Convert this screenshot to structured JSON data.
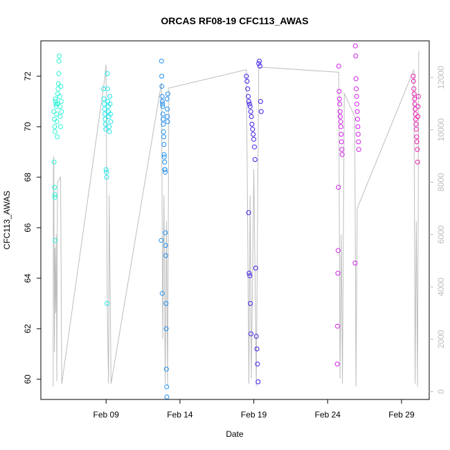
{
  "chart_data": {
    "type": "scatter",
    "title": "ORCAS RF08-19 CFC113_AWAS",
    "xlabel": "Date",
    "ylabel": "CFC113_AWAS",
    "x_ticks": [
      {
        "date": "2016-02-09",
        "label": "Feb 09"
      },
      {
        "date": "2016-02-14",
        "label": "Feb 14"
      },
      {
        "date": "2016-02-19",
        "label": "Feb 19"
      },
      {
        "date": "2016-02-24",
        "label": "Feb 24"
      },
      {
        "date": "2016-02-29",
        "label": "Feb 29"
      }
    ],
    "xlim": [
      "2016-02-04T14:00",
      "2016-03-01T21:00"
    ],
    "ylim": [
      59.2,
      73.4
    ],
    "y_ticks": [
      60,
      62,
      64,
      66,
      68,
      70,
      72
    ],
    "y2_ticks": [
      0,
      2000,
      4000,
      6000,
      8000,
      10000,
      12000
    ],
    "y2lim": [
      -300,
      13400
    ],
    "y2_color": "#bdbdbd",
    "grid": false,
    "legend": "none",
    "point_style": "open circles",
    "series": [
      {
        "color": "#2af5d6",
        "points": [
          {
            "x": "2016-02-05T11:00",
            "y": 70.6
          },
          {
            "x": "2016-02-05T12:00",
            "y": 70.3
          },
          {
            "x": "2016-02-05T12:30",
            "y": 70.0
          },
          {
            "x": "2016-02-05T13:00",
            "y": 69.8
          },
          {
            "x": "2016-02-05T13:30",
            "y": 71.1
          },
          {
            "x": "2016-02-05T14:00",
            "y": 71.0
          },
          {
            "x": "2016-02-05T14:30",
            "y": 70.9
          },
          {
            "x": "2016-02-05T15:00",
            "y": 70.8
          },
          {
            "x": "2016-02-05T15:30",
            "y": 70.5
          },
          {
            "x": "2016-02-05T16:00",
            "y": 70.2
          },
          {
            "x": "2016-02-05T11:30",
            "y": 68.6
          },
          {
            "x": "2016-02-05T12:15",
            "y": 67.6
          },
          {
            "x": "2016-02-05T12:40",
            "y": 67.3
          },
          {
            "x": "2016-02-05T12:50",
            "y": 67.2
          },
          {
            "x": "2016-02-05T13:10",
            "y": 65.5
          },
          {
            "x": "2016-02-05T16:30",
            "y": 69.6
          },
          {
            "x": "2016-02-05T17:00",
            "y": 70.9
          },
          {
            "x": "2016-02-05T17:30",
            "y": 71.3
          },
          {
            "x": "2016-02-05T18:00",
            "y": 71.5
          },
          {
            "x": "2016-02-05T18:30",
            "y": 71.7
          },
          {
            "x": "2016-02-05T19:00",
            "y": 72.1
          },
          {
            "x": "2016-02-05T19:30",
            "y": 72.6
          },
          {
            "x": "2016-02-05T20:00",
            "y": 72.8
          },
          {
            "x": "2016-02-05T20:30",
            "y": 71.2
          },
          {
            "x": "2016-02-05T21:00",
            "y": 70.8
          },
          {
            "x": "2016-02-05T21:30",
            "y": 70.4
          },
          {
            "x": "2016-02-05T22:00",
            "y": 70.0
          },
          {
            "x": "2016-02-05T22:30",
            "y": 71.6
          },
          {
            "x": "2016-02-05T23:00",
            "y": 71.0
          },
          {
            "x": "2016-02-05T23:30",
            "y": 70.6
          }
        ]
      },
      {
        "color": "#1fe6e8",
        "points": [
          {
            "x": "2016-02-08T20:00",
            "y": 71.5
          },
          {
            "x": "2016-02-08T20:30",
            "y": 71.1
          },
          {
            "x": "2016-02-08T21:00",
            "y": 70.9
          },
          {
            "x": "2016-02-08T21:30",
            "y": 70.7
          },
          {
            "x": "2016-02-08T22:00",
            "y": 70.5
          },
          {
            "x": "2016-02-08T22:30",
            "y": 70.3
          },
          {
            "x": "2016-02-08T23:00",
            "y": 70.1
          },
          {
            "x": "2016-02-08T23:30",
            "y": 69.9
          },
          {
            "x": "2016-02-09T00:00",
            "y": 68.3
          },
          {
            "x": "2016-02-09T00:30",
            "y": 68.2
          },
          {
            "x": "2016-02-09T01:00",
            "y": 68.0
          },
          {
            "x": "2016-02-09T01:30",
            "y": 63.0
          },
          {
            "x": "2016-02-09T02:00",
            "y": 72.1
          },
          {
            "x": "2016-02-09T02:30",
            "y": 71.5
          },
          {
            "x": "2016-02-09T03:00",
            "y": 71.0
          },
          {
            "x": "2016-02-09T03:30",
            "y": 70.8
          },
          {
            "x": "2016-02-09T04:00",
            "y": 70.6
          },
          {
            "x": "2016-02-09T04:30",
            "y": 70.4
          },
          {
            "x": "2016-02-09T05:00",
            "y": 70.0
          },
          {
            "x": "2016-02-09T05:30",
            "y": 69.8
          },
          {
            "x": "2016-02-09T06:00",
            "y": 71.2
          },
          {
            "x": "2016-02-09T06:30",
            "y": 70.9
          },
          {
            "x": "2016-02-09T07:00",
            "y": 70.5
          },
          {
            "x": "2016-02-09T07:30",
            "y": 70.2
          }
        ]
      },
      {
        "color": "#1f8ff0",
        "points": [
          {
            "x": "2016-02-12T18:00",
            "y": 72.6
          },
          {
            "x": "2016-02-12T18:20",
            "y": 72.0
          },
          {
            "x": "2016-02-12T18:40",
            "y": 71.6
          },
          {
            "x": "2016-02-12T19:00",
            "y": 71.2
          },
          {
            "x": "2016-02-12T19:20",
            "y": 71.0
          },
          {
            "x": "2016-02-12T19:40",
            "y": 70.9
          },
          {
            "x": "2016-02-12T20:00",
            "y": 70.8
          },
          {
            "x": "2016-02-12T20:20",
            "y": 70.5
          },
          {
            "x": "2016-02-12T20:40",
            "y": 70.3
          },
          {
            "x": "2016-02-12T21:00",
            "y": 70.1
          },
          {
            "x": "2016-02-12T21:20",
            "y": 69.8
          },
          {
            "x": "2016-02-12T21:40",
            "y": 69.6
          },
          {
            "x": "2016-02-12T22:00",
            "y": 69.3
          },
          {
            "x": "2016-02-12T22:20",
            "y": 68.9
          },
          {
            "x": "2016-02-12T22:40",
            "y": 68.8
          },
          {
            "x": "2016-02-12T23:00",
            "y": 68.6
          },
          {
            "x": "2016-02-12T23:20",
            "y": 68.3
          },
          {
            "x": "2016-02-12T23:40",
            "y": 68.3
          },
          {
            "x": "2016-02-13T00:00",
            "y": 68.2
          },
          {
            "x": "2016-02-12T17:40",
            "y": 65.5
          },
          {
            "x": "2016-02-13T00:20",
            "y": 65.8
          },
          {
            "x": "2016-02-13T00:40",
            "y": 65.3
          },
          {
            "x": "2016-02-13T01:00",
            "y": 64.9
          },
          {
            "x": "2016-02-12T19:10",
            "y": 63.4
          },
          {
            "x": "2016-02-13T01:20",
            "y": 63.0
          },
          {
            "x": "2016-02-13T01:40",
            "y": 62.0
          },
          {
            "x": "2016-02-13T02:00",
            "y": 60.4
          },
          {
            "x": "2016-02-13T02:20",
            "y": 59.7
          },
          {
            "x": "2016-02-13T02:40",
            "y": 59.3
          },
          {
            "x": "2016-02-13T03:00",
            "y": 71.1
          },
          {
            "x": "2016-02-13T03:20",
            "y": 70.7
          },
          {
            "x": "2016-02-13T03:40",
            "y": 70.4
          },
          {
            "x": "2016-02-13T04:00",
            "y": 70.2
          },
          {
            "x": "2016-02-13T04:20",
            "y": 71.3
          }
        ]
      },
      {
        "color": "#3a1fe8",
        "points": [
          {
            "x": "2016-02-18T12:00",
            "y": 72.0
          },
          {
            "x": "2016-02-18T13:00",
            "y": 71.8
          },
          {
            "x": "2016-02-18T14:00",
            "y": 71.5
          },
          {
            "x": "2016-02-18T15:00",
            "y": 71.2
          },
          {
            "x": "2016-02-18T16:00",
            "y": 71.0
          },
          {
            "x": "2016-02-18T17:00",
            "y": 70.9
          },
          {
            "x": "2016-02-18T18:00",
            "y": 70.8
          },
          {
            "x": "2016-02-18T19:00",
            "y": 70.6
          },
          {
            "x": "2016-02-18T20:00",
            "y": 70.4
          },
          {
            "x": "2016-02-18T21:00",
            "y": 70.1
          },
          {
            "x": "2016-02-18T22:00",
            "y": 69.9
          },
          {
            "x": "2016-02-18T23:00",
            "y": 69.7
          },
          {
            "x": "2016-02-19T00:00",
            "y": 69.5
          },
          {
            "x": "2016-02-19T01:00",
            "y": 69.2
          },
          {
            "x": "2016-02-19T02:00",
            "y": 68.7
          },
          {
            "x": "2016-02-18T15:30",
            "y": 66.6
          },
          {
            "x": "2016-02-18T16:30",
            "y": 64.2
          },
          {
            "x": "2016-02-18T17:30",
            "y": 64.1
          },
          {
            "x": "2016-02-19T03:00",
            "y": 64.4
          },
          {
            "x": "2016-02-18T18:30",
            "y": 63.0
          },
          {
            "x": "2016-02-18T19:30",
            "y": 61.8
          },
          {
            "x": "2016-02-19T04:00",
            "y": 61.7
          },
          {
            "x": "2016-02-19T05:00",
            "y": 61.2
          },
          {
            "x": "2016-02-19T06:00",
            "y": 60.6
          },
          {
            "x": "2016-02-19T07:00",
            "y": 59.9
          },
          {
            "x": "2016-02-19T08:00",
            "y": 72.5
          },
          {
            "x": "2016-02-19T09:00",
            "y": 72.6
          },
          {
            "x": "2016-02-19T10:00",
            "y": 72.4
          },
          {
            "x": "2016-02-19T11:00",
            "y": 71.0
          },
          {
            "x": "2016-02-19T12:00",
            "y": 70.6
          }
        ]
      },
      {
        "color": "#d21fe8",
        "points": [
          {
            "x": "2016-02-24T18:00",
            "y": 72.4
          },
          {
            "x": "2016-02-24T18:30",
            "y": 71.4
          },
          {
            "x": "2016-02-24T19:00",
            "y": 71.1
          },
          {
            "x": "2016-02-24T19:30",
            "y": 70.9
          },
          {
            "x": "2016-02-24T20:00",
            "y": 70.6
          },
          {
            "x": "2016-02-24T20:30",
            "y": 70.4
          },
          {
            "x": "2016-02-24T21:00",
            "y": 70.2
          },
          {
            "x": "2016-02-24T21:30",
            "y": 70.0
          },
          {
            "x": "2016-02-24T22:00",
            "y": 69.7
          },
          {
            "x": "2016-02-24T22:30",
            "y": 69.4
          },
          {
            "x": "2016-02-24T23:00",
            "y": 69.1
          },
          {
            "x": "2016-02-24T23:30",
            "y": 68.9
          },
          {
            "x": "2016-02-24T17:30",
            "y": 67.6
          },
          {
            "x": "2016-02-24T17:00",
            "y": 65.1
          },
          {
            "x": "2016-02-24T16:30",
            "y": 64.2
          },
          {
            "x": "2016-02-24T16:00",
            "y": 62.1
          },
          {
            "x": "2016-02-24T15:30",
            "y": 60.6
          },
          {
            "x": "2016-02-25T21:00",
            "y": 73.2
          },
          {
            "x": "2016-02-25T21:30",
            "y": 72.8
          },
          {
            "x": "2016-02-25T22:00",
            "y": 71.9
          },
          {
            "x": "2016-02-25T22:30",
            "y": 71.5
          },
          {
            "x": "2016-02-25T23:00",
            "y": 71.2
          },
          {
            "x": "2016-02-25T23:30",
            "y": 70.9
          },
          {
            "x": "2016-02-26T00:00",
            "y": 70.6
          },
          {
            "x": "2016-02-26T00:30",
            "y": 70.3
          },
          {
            "x": "2016-02-26T01:00",
            "y": 70.0
          },
          {
            "x": "2016-02-26T01:30",
            "y": 69.7
          },
          {
            "x": "2016-02-26T02:00",
            "y": 69.4
          },
          {
            "x": "2016-02-26T02:30",
            "y": 69.1
          },
          {
            "x": "2016-02-25T20:30",
            "y": 64.6
          }
        ]
      },
      {
        "color": "#e81fae",
        "points": [
          {
            "x": "2016-02-29T19:00",
            "y": 72.0
          },
          {
            "x": "2016-02-29T19:30",
            "y": 71.8
          },
          {
            "x": "2016-02-29T20:00",
            "y": 71.5
          },
          {
            "x": "2016-02-29T20:30",
            "y": 71.3
          },
          {
            "x": "2016-02-29T21:00",
            "y": 71.1
          },
          {
            "x": "2016-02-29T21:30",
            "y": 70.9
          },
          {
            "x": "2016-02-29T22:00",
            "y": 70.7
          },
          {
            "x": "2016-02-29T22:30",
            "y": 70.5
          },
          {
            "x": "2016-02-29T23:00",
            "y": 70.3
          },
          {
            "x": "2016-02-29T23:30",
            "y": 70.1
          },
          {
            "x": "2016-03-01T00:00",
            "y": 69.9
          },
          {
            "x": "2016-03-01T00:30",
            "y": 69.6
          },
          {
            "x": "2016-03-01T01:00",
            "y": 69.4
          },
          {
            "x": "2016-03-01T01:30",
            "y": 69.1
          },
          {
            "x": "2016-03-01T02:00",
            "y": 68.6
          },
          {
            "x": "2016-03-01T02:30",
            "y": 70.4
          },
          {
            "x": "2016-03-01T03:00",
            "y": 70.8
          },
          {
            "x": "2016-03-01T03:30",
            "y": 71.2
          }
        ]
      }
    ],
    "altitude_series": {
      "color": "#bdbdbd",
      "style": "line",
      "axis": "right",
      "points": [
        {
          "x": "2016-02-05T10:00",
          "y": 200
        },
        {
          "x": "2016-02-05T10:20",
          "y": 8500
        },
        {
          "x": "2016-02-05T11:00",
          "y": 9000
        },
        {
          "x": "2016-02-05T12:00",
          "y": 1500
        },
        {
          "x": "2016-02-05T13:00",
          "y": 5500
        },
        {
          "x": "2016-02-05T14:00",
          "y": 3000
        },
        {
          "x": "2016-02-05T15:00",
          "y": 6000
        },
        {
          "x": "2016-02-05T16:00",
          "y": 400
        },
        {
          "x": "2016-02-05T17:00",
          "y": 8000
        },
        {
          "x": "2016-02-05T22:00",
          "y": 8200
        },
        {
          "x": "2016-02-06T00:00",
          "y": 300
        },
        {
          "x": "2016-02-08T22:00",
          "y": 12000
        },
        {
          "x": "2016-02-09T00:00",
          "y": 12500
        },
        {
          "x": "2016-02-09T02:00",
          "y": 3000
        },
        {
          "x": "2016-02-09T04:00",
          "y": 300
        },
        {
          "x": "2016-02-09T05:00",
          "y": 7500
        },
        {
          "x": "2016-02-09T08:00",
          "y": 300
        },
        {
          "x": "2016-02-12T18:00",
          "y": 11800
        },
        {
          "x": "2016-02-12T20:00",
          "y": 2000
        },
        {
          "x": "2016-02-12T22:00",
          "y": 7500
        },
        {
          "x": "2016-02-13T00:00",
          "y": 300
        },
        {
          "x": "2016-02-13T02:00",
          "y": 6500
        },
        {
          "x": "2016-02-13T04:00",
          "y": 200
        },
        {
          "x": "2016-02-13T06:00",
          "y": 11600
        },
        {
          "x": "2016-02-18T12:00",
          "y": 12300
        },
        {
          "x": "2016-02-18T16:00",
          "y": 300
        },
        {
          "x": "2016-02-18T18:00",
          "y": 7500
        },
        {
          "x": "2016-02-18T20:00",
          "y": 500
        },
        {
          "x": "2016-02-19T00:00",
          "y": 8500
        },
        {
          "x": "2016-02-19T04:00",
          "y": 200
        },
        {
          "x": "2016-02-19T08:00",
          "y": 12400
        },
        {
          "x": "2016-02-24T18:00",
          "y": 12200
        },
        {
          "x": "2016-02-24T20:00",
          "y": 500
        },
        {
          "x": "2016-02-24T22:00",
          "y": 6000
        },
        {
          "x": "2016-02-25T00:00",
          "y": 300
        },
        {
          "x": "2016-02-25T03:00",
          "y": 11400
        },
        {
          "x": "2016-02-25T20:00",
          "y": 10500
        },
        {
          "x": "2016-02-25T22:00",
          "y": 200
        },
        {
          "x": "2016-02-26T00:00",
          "y": 7000
        },
        {
          "x": "2016-02-29T20:00",
          "y": 12300
        },
        {
          "x": "2016-02-29T22:00",
          "y": 300
        },
        {
          "x": "2016-03-01T00:00",
          "y": 6500
        },
        {
          "x": "2016-03-01T02:00",
          "y": 200
        },
        {
          "x": "2016-03-01T04:00",
          "y": 13000
        }
      ]
    }
  }
}
